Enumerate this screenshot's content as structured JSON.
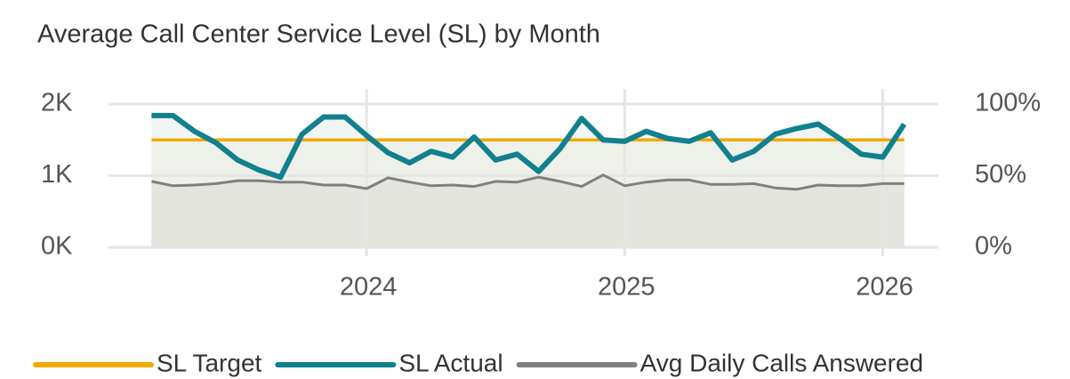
{
  "chart_data": {
    "type": "line",
    "title": "Average Call Center Service Level (SL) by Month",
    "x": [
      "2023-03",
      "2023-04",
      "2023-05",
      "2023-06",
      "2023-07",
      "2023-08",
      "2023-09",
      "2023-10",
      "2023-11",
      "2023-12",
      "2024-01",
      "2024-02",
      "2024-03",
      "2024-04",
      "2024-05",
      "2024-06",
      "2024-07",
      "2024-08",
      "2024-09",
      "2024-10",
      "2024-11",
      "2024-12",
      "2025-01",
      "2025-02",
      "2025-03",
      "2025-04",
      "2025-05",
      "2025-06",
      "2025-07",
      "2025-08",
      "2025-09",
      "2025-10",
      "2025-11",
      "2025-12",
      "2026-01",
      "2026-02"
    ],
    "series": [
      {
        "name": "SL Target",
        "color": "#f2a900",
        "axis": "y2",
        "values": [
          75,
          75,
          75,
          75,
          75,
          75,
          75,
          75,
          75,
          75,
          75,
          75,
          75,
          75,
          75,
          75,
          75,
          75,
          75,
          75,
          75,
          75,
          75,
          75,
          75,
          75,
          75,
          75,
          75,
          75,
          75,
          75,
          75,
          75,
          75,
          75
        ]
      },
      {
        "name": "SL Actual",
        "color": "#11808f",
        "axis": "y2",
        "values": [
          92,
          92,
          81,
          73,
          61,
          54,
          49,
          79,
          91,
          91,
          78,
          66,
          59,
          67,
          63,
          77,
          61,
          65,
          53,
          69,
          90,
          75,
          74,
          81,
          76,
          74,
          80,
          61,
          67,
          79,
          83,
          86,
          76,
          65,
          63,
          86
        ]
      },
      {
        "name": "Avg Daily Calls Answered",
        "color": "#808080",
        "values": [
          920,
          860,
          870,
          890,
          930,
          930,
          910,
          910,
          870,
          870,
          820,
          970,
          910,
          860,
          870,
          850,
          920,
          910,
          980,
          920,
          850,
          1010,
          860,
          910,
          940,
          940,
          880,
          880,
          890,
          830,
          810,
          870,
          860,
          860,
          890,
          890
        ]
      }
    ],
    "xlim": [
      "2023-01",
      "2026-04"
    ],
    "xticks": [
      {
        "value": "2024-01",
        "label": "2024"
      },
      {
        "value": "2025-01",
        "label": "2025"
      },
      {
        "value": "2026-01",
        "label": "2026"
      }
    ],
    "ylim": [
      0,
      2000
    ],
    "yticks": [
      {
        "value": 0,
        "label": "0K"
      },
      {
        "value": 1000,
        "label": "1K"
      },
      {
        "value": 2000,
        "label": "2K"
      }
    ],
    "y2lim": [
      0,
      100
    ],
    "y2ticks": [
      {
        "value": 0,
        "label": "0%"
      },
      {
        "value": 50,
        "label": "50%"
      },
      {
        "value": 100,
        "label": "100%"
      }
    ],
    "grid": true,
    "legend": "bottom"
  }
}
